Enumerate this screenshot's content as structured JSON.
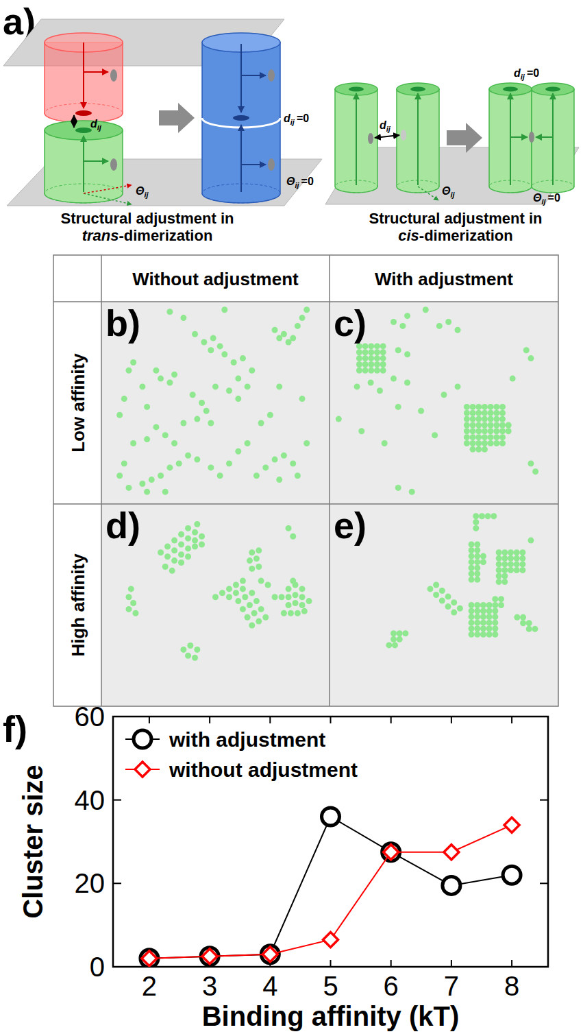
{
  "figure": {
    "diagram": {
      "letter": "a)",
      "trans_caption": {
        "line1": "Structural adjustment in",
        "italic": "trans",
        "rest": "-dimerization"
      },
      "cis_caption": {
        "line1": "Structural adjustment in",
        "italic": "cis",
        "rest": "-dimerization"
      },
      "distance": "d",
      "angle": "Θ",
      "subscript": "ij",
      "zero": "=0"
    },
    "grid": {
      "columns": [
        "Without adjustment",
        "With adjustment"
      ],
      "rows": [
        "Low affinity",
        "High affinity"
      ]
    }
  },
  "chart_data": [
    {
      "type": "scatter",
      "title": "b)",
      "tick_labels": false,
      "color": "#8fe88f",
      "xlim": [
        0,
        100
      ],
      "ylim": [
        0,
        100
      ],
      "x": [
        30,
        36,
        54,
        41,
        45,
        49,
        52,
        48,
        54,
        76,
        78,
        80,
        82,
        84,
        86,
        88,
        90,
        14,
        12,
        24,
        26,
        30,
        32,
        18,
        10,
        20,
        8,
        58,
        62,
        66,
        60,
        64,
        56,
        60,
        40,
        44,
        42,
        46,
        48,
        36,
        50,
        78,
        88,
        24,
        20,
        14,
        28,
        32,
        10,
        8,
        12,
        18,
        22,
        26,
        30,
        34,
        38,
        42,
        48,
        52,
        56,
        60,
        64,
        68,
        72,
        76,
        80,
        84,
        78,
        86,
        90,
        20,
        28,
        70,
        74
      ],
      "values": [
        95,
        92,
        96,
        84,
        80,
        82,
        78,
        76,
        74,
        86,
        82,
        84,
        80,
        82,
        88,
        92,
        96,
        70,
        66,
        66,
        62,
        60,
        64,
        58,
        52,
        48,
        44,
        70,
        72,
        66,
        62,
        58,
        56,
        52,
        54,
        50,
        42,
        46,
        40,
        40,
        58,
        58,
        52,
        38,
        32,
        30,
        34,
        30,
        20,
        14,
        8,
        10,
        12,
        14,
        18,
        20,
        24,
        22,
        18,
        14,
        20,
        26,
        30,
        14,
        18,
        22,
        24,
        20,
        12,
        14,
        30,
        6,
        6,
        40,
        44
      ]
    },
    {
      "type": "scatter",
      "title": "c)",
      "tick_labels": false,
      "color": "#8fe88f",
      "xlim": [
        0,
        100
      ],
      "ylim": [
        0,
        100
      ],
      "x": [
        13,
        15.6,
        18.2,
        20.8,
        23.4,
        13,
        15.6,
        18.2,
        20.8,
        23.4,
        13,
        15.6,
        18.2,
        20.8,
        23.4,
        13,
        15.6,
        18.2,
        20.8,
        23.4,
        13,
        15.6,
        18.2,
        20.8,
        23.4,
        60,
        62.6,
        65.2,
        67.8,
        70.4,
        73,
        75.6,
        60,
        62.6,
        65.2,
        67.8,
        70.4,
        73,
        75.6,
        60,
        62.6,
        65.2,
        67.8,
        70.4,
        73,
        75.6,
        60,
        62.6,
        65.2,
        67.8,
        70.4,
        73,
        75.6,
        60,
        62.6,
        65.2,
        67.8,
        70.4,
        73,
        75.6,
        60,
        62.6,
        65.2,
        67.8,
        70.4,
        73,
        75.6,
        60,
        62.6,
        65.2,
        67.8,
        70.4,
        73,
        75.6,
        78.2,
        78.2,
        62.6,
        65.2,
        67.8,
        28,
        32,
        34,
        42,
        48,
        52,
        56,
        30,
        34,
        12,
        18,
        22,
        28,
        34,
        30,
        50,
        56,
        86,
        88,
        80,
        4,
        14,
        24,
        46,
        30,
        36,
        88,
        90,
        40
      ],
      "values": [
        78,
        78,
        78,
        78,
        78,
        75,
        75,
        75,
        75,
        75,
        72,
        72,
        72,
        72,
        72,
        69,
        69,
        69,
        69,
        69,
        66,
        66,
        66,
        66,
        66,
        48,
        48,
        48,
        48,
        48,
        48,
        48,
        45,
        45,
        45,
        45,
        45,
        45,
        45,
        42,
        42,
        42,
        42,
        42,
        42,
        42,
        39,
        39,
        39,
        39,
        39,
        39,
        39,
        36,
        36,
        36,
        36,
        36,
        36,
        36,
        33,
        33,
        33,
        33,
        33,
        33,
        33,
        30,
        30,
        30,
        30,
        30,
        30,
        30,
        39,
        36,
        27,
        27,
        27,
        90,
        88,
        93,
        96,
        88,
        90,
        86,
        76,
        74,
        58,
        60,
        56,
        62,
        60,
        48,
        54,
        58,
        76,
        72,
        62,
        42,
        36,
        30,
        34,
        8,
        6,
        20,
        16,
        46
      ]
    },
    {
      "type": "scatter",
      "title": "d)",
      "tick_labels": false,
      "color": "#8fe88f",
      "xlim": [
        0,
        100
      ],
      "ylim": [
        0,
        100
      ],
      "x": [
        38,
        41,
        35,
        38,
        41,
        44,
        32,
        35,
        38,
        41,
        29,
        32,
        35,
        38,
        26,
        29,
        32,
        35,
        28,
        31,
        42,
        44,
        66,
        69,
        65,
        68,
        66,
        69,
        82,
        84,
        50,
        53,
        56,
        59,
        62,
        56,
        59,
        62,
        60,
        63,
        66,
        62,
        65,
        68,
        64,
        67,
        70,
        66,
        69,
        72,
        70,
        73,
        76,
        79,
        82,
        85,
        88,
        82,
        85,
        88,
        82,
        85,
        88,
        83,
        86,
        89,
        84,
        80,
        91,
        12,
        14,
        12,
        15,
        13,
        36,
        39,
        42,
        38,
        41
      ],
      "values": [
        88,
        86,
        85,
        83,
        82,
        84,
        82,
        80,
        78,
        79,
        79,
        77,
        75,
        74,
        76,
        74,
        72,
        71,
        69,
        67,
        90,
        80,
        76,
        77,
        72,
        73,
        68,
        69,
        88,
        84,
        54,
        56,
        58,
        60,
        62,
        54,
        56,
        58,
        52,
        54,
        56,
        48,
        50,
        52,
        44,
        46,
        48,
        40,
        42,
        44,
        62,
        60,
        54,
        54,
        58,
        60,
        58,
        54,
        55,
        54,
        50,
        51,
        50,
        46,
        46,
        47,
        62,
        46,
        52,
        54,
        51,
        48,
        46,
        58,
        28,
        30,
        28,
        25,
        24
      ]
    },
    {
      "type": "scatter",
      "title": "e)",
      "tick_labels": false,
      "color": "#8fe88f",
      "xlim": [
        0,
        100
      ],
      "ylim": [
        0,
        100
      ],
      "x": [
        64,
        66.6,
        69.2,
        71.8,
        64,
        64,
        62,
        64.6,
        62,
        64.6,
        62,
        64.6,
        62,
        64.6,
        62,
        64.6,
        62,
        64.6,
        62,
        64.6,
        67.2,
        67.2,
        74,
        76.6,
        79.2,
        81.8,
        84.4,
        74,
        76.6,
        79.2,
        81.8,
        84.4,
        74,
        76.6,
        79.2,
        81.8,
        84.4,
        74,
        76.6,
        79.2,
        81.8,
        84.4,
        74,
        76.6,
        74,
        76.6,
        62,
        64.6,
        67.2,
        69.8,
        72.4,
        62,
        64.6,
        67.2,
        69.8,
        72.4,
        62,
        64.6,
        67.2,
        69.8,
        72.4,
        62,
        64.6,
        67.2,
        69.8,
        72.4,
        62,
        64.6,
        67.2,
        69.8,
        72.4,
        62,
        64.6,
        67.2,
        69.8,
        72.4,
        75,
        75,
        72.4,
        44,
        46.6,
        46.6,
        49.2,
        49.2,
        51.8,
        51.8,
        54.4,
        54.4,
        57,
        28,
        30.6,
        33.2,
        28,
        30.6,
        26,
        28.6,
        82,
        84.6,
        84.6,
        87.2,
        87.2,
        89.8,
        88
      ],
      "values": [
        94,
        94,
        94,
        94,
        91,
        88,
        80,
        80,
        77.1,
        77.1,
        74.2,
        74.2,
        71.3,
        71.3,
        68.4,
        68.4,
        65.5,
        65.5,
        62.6,
        62.6,
        74.2,
        71.3,
        76,
        76,
        76,
        76,
        76,
        73.1,
        73.1,
        73.1,
        73.1,
        73.1,
        70.2,
        70.2,
        70.2,
        70.2,
        70.2,
        67.3,
        67.3,
        67.3,
        67.3,
        67.3,
        64.4,
        64.4,
        61.5,
        61.5,
        50,
        50,
        50,
        50,
        50,
        47.1,
        47.1,
        47.1,
        47.1,
        47.1,
        44.2,
        44.2,
        44.2,
        44.2,
        44.2,
        41.3,
        41.3,
        41.3,
        41.3,
        41.3,
        38.4,
        38.4,
        38.4,
        38.4,
        38.4,
        35.5,
        35.5,
        35.5,
        35.5,
        35.5,
        50,
        53,
        53,
        58,
        60,
        55.1,
        57.1,
        52.2,
        54.2,
        49.3,
        51.3,
        46.4,
        48.4,
        36,
        36,
        36,
        33.1,
        33.1,
        30.2,
        30.2,
        44,
        44,
        41.1,
        41.1,
        38.2,
        38.2,
        82
      ]
    },
    {
      "type": "line",
      "title": "f)",
      "xlabel": "Binding affinity (kT)",
      "ylabel": "Cluster size",
      "x": [
        2,
        3,
        4,
        5,
        6,
        7,
        8
      ],
      "xlim": [
        1.4,
        8.6
      ],
      "xticks": [
        2,
        3,
        4,
        5,
        6,
        7,
        8
      ],
      "ylim": [
        0,
        60
      ],
      "yticks": [
        0,
        20,
        40,
        60
      ],
      "legend": "upper left",
      "series": [
        {
          "name": "with adjustment",
          "color": "#000000",
          "marker": "circle",
          "values": [
            2,
            2.5,
            3,
            36,
            27.5,
            19.5,
            22
          ]
        },
        {
          "name": "without adjustment",
          "color": "#ff0000",
          "marker": "diamond",
          "values": [
            2,
            2.5,
            3,
            6.5,
            27.5,
            27.5,
            34
          ]
        }
      ]
    }
  ]
}
